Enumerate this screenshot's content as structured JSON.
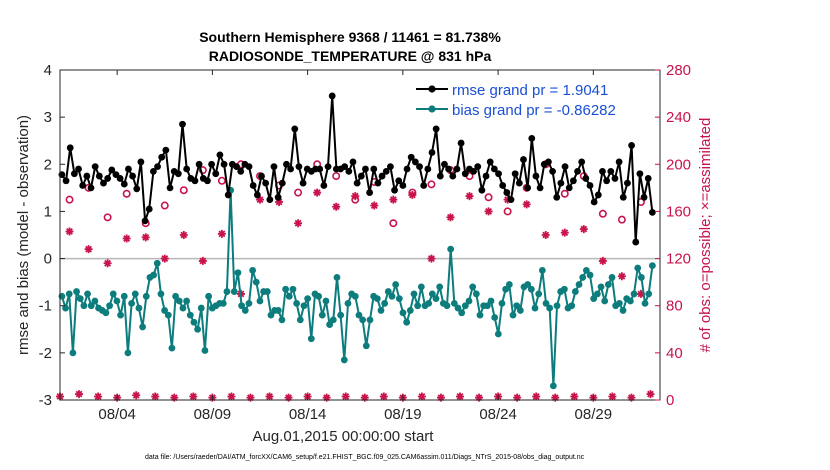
{
  "chart_data": {
    "type": "line",
    "title": "Southern Hemisphere 9368 / 11461 = 81.738%",
    "subtitle": "RADIOSONDE_TEMPERATURE @ 831 hPa",
    "xlabel": "Aug.01,2015 00:00:00 start",
    "ylabel": "rmse and bias (model - observation)",
    "y2label": "# of obs: o=possible; ×=assimilated",
    "footnote": "data file: /Users/raeder/DAI/ATM_forcXX/CAM6_setup/f.e21.FHIST_BGC.f09_025.CAM6assim.011/Diags_NTrS_2015-08/obs_diag_output.nc",
    "xlim": [
      0,
      31.5
    ],
    "ylim": [
      -3,
      4
    ],
    "y2lim": [
      0,
      280
    ],
    "x_tick_values": [
      3,
      8,
      13,
      18,
      23,
      28
    ],
    "x_tick_labels": [
      "08/04",
      "08/09",
      "08/14",
      "08/19",
      "08/24",
      "08/29"
    ],
    "y_tick_labels": [
      "-3",
      "-2",
      "-1",
      "0",
      "1",
      "2",
      "3",
      "4"
    ],
    "y2_tick_labels": [
      "0",
      "40",
      "80",
      "120",
      "160",
      "200",
      "240",
      "280"
    ],
    "legend": [
      {
        "name": "rmse grand pr = 1.9041",
        "color": "#000000"
      },
      {
        "name": "bias grand pr = -0.86282",
        "color": "#0c7c7c"
      }
    ],
    "series": [
      {
        "name": "rmse",
        "color": "#000000",
        "values": [
          1.78,
          1.65,
          2.35,
          1.8,
          1.9,
          1.55,
          1.75,
          1.5,
          1.95,
          1.75,
          1.6,
          1.7,
          1.88,
          1.78,
          1.7,
          1.58,
          1.9,
          1.75,
          1.48,
          2.05,
          0.8,
          1.05,
          1.85,
          1.95,
          2.15,
          2.3,
          1.5,
          1.85,
          1.8,
          2.85,
          1.9,
          1.7,
          1.65,
          2.0,
          1.7,
          1.65,
          2.0,
          1.8,
          2.2,
          2.0,
          1.35,
          2.0,
          1.95,
          1.85,
          2.0,
          1.95,
          1.55,
          1.35,
          1.75,
          1.6,
          1.25,
          1.95,
          1.3,
          1.6,
          2.0,
          1.9,
          2.75,
          1.95,
          1.6,
          1.9,
          1.85,
          1.9,
          1.9,
          1.55,
          1.95,
          3.45,
          1.9,
          1.9,
          1.95,
          1.85,
          2.05,
          1.6,
          1.75,
          1.9,
          1.4,
          1.9,
          1.6,
          1.75,
          1.85,
          1.95,
          1.45,
          1.65,
          1.55,
          1.9,
          2.15,
          2.05,
          1.95,
          1.55,
          1.9,
          2.25,
          2.75,
          1.75,
          2.0,
          1.9,
          1.75,
          1.9,
          2.45,
          1.8,
          1.9,
          1.85,
          1.95,
          1.45,
          1.75,
          2.05,
          1.9,
          1.8,
          1.55,
          1.4,
          1.25,
          1.8,
          1.6,
          2.1,
          1.5,
          2.55,
          1.75,
          1.5,
          2.0,
          2.05,
          1.85,
          1.3,
          1.6,
          1.95,
          1.5,
          1.65,
          1.85,
          2.05,
          1.7,
          1.55,
          1.2,
          1.35,
          1.85,
          1.65,
          1.85,
          1.7,
          2.05,
          1.3,
          1.6,
          2.4,
          0.35,
          1.8,
          1.3,
          1.7,
          0.98
        ]
      },
      {
        "name": "bias",
        "color": "#0c7c7c",
        "values": [
          -0.8,
          -1.05,
          -0.75,
          -2.0,
          -0.7,
          -0.85,
          -1.0,
          -0.75,
          -1.0,
          -0.9,
          -1.05,
          -1.1,
          -1.15,
          -1.0,
          -0.75,
          -0.9,
          -1.2,
          -0.8,
          -2.0,
          -0.95,
          -0.75,
          -1.05,
          -1.45,
          -0.8,
          -0.4,
          -0.35,
          -0.1,
          -0.75,
          -1.1,
          -1.2,
          -1.9,
          -0.8,
          -0.9,
          -1.05,
          -0.9,
          -1.2,
          -1.35,
          -1.5,
          -1.05,
          -1.95,
          -0.8,
          -1.05,
          -1.0,
          -0.95,
          -0.95,
          -0.7,
          1.45,
          -0.7,
          -0.3,
          -1.0,
          -1.1,
          -0.95,
          -0.25,
          -0.5,
          -0.9,
          -0.7,
          -0.7,
          -1.2,
          -1.1,
          -1.1,
          -1.3,
          -0.65,
          -0.8,
          -0.65,
          -0.95,
          -1.3,
          -1.0,
          -0.85,
          -1.7,
          -0.75,
          -0.8,
          -1.2,
          -0.9,
          -1.4,
          -1.3,
          -0.4,
          -1.2,
          -2.15,
          -0.95,
          -0.75,
          -0.8,
          -1.2,
          -1.3,
          -1.85,
          -1.3,
          -0.8,
          -0.85,
          -1.1,
          -0.95,
          -0.7,
          -0.8,
          -0.55,
          -0.85,
          -1.15,
          -1.35,
          -1.1,
          -0.75,
          -1.0,
          -0.6,
          -1.0,
          -0.95,
          -0.75,
          -0.85,
          -0.6,
          -0.95,
          -1.0,
          0.2,
          -0.95,
          -1.05,
          -1.15,
          -1.0,
          -0.9,
          -0.6,
          -0.75,
          -1.2,
          -1.0,
          -1.0,
          -0.9,
          -1.25,
          -1.6,
          -0.95,
          -0.65,
          -0.55,
          -1.2,
          -1.0,
          -1.1,
          -0.6,
          -0.55,
          -0.65,
          -1.05,
          -0.75,
          -0.25,
          -0.95,
          -1.05,
          -2.7,
          -1.0,
          -0.7,
          -0.65,
          -1.05,
          -1.0,
          -0.7,
          -0.55,
          -0.4,
          -0.25,
          -0.35,
          -0.85,
          -0.75,
          -0.6,
          -0.9,
          -0.55,
          -0.4,
          -1.0,
          -0.95,
          -1.1,
          -0.85,
          -0.9,
          -0.75,
          -0.2,
          -0.4,
          -0.95,
          -0.75,
          -0.15
        ]
      },
      {
        "name": "possible",
        "color": "#c8144b",
        "axis": "right",
        "marker": "o",
        "x": [
          0.5,
          1.5,
          2.5,
          3.5,
          4.5,
          5.5,
          6.5,
          7.5,
          8.5,
          9.5,
          10.5,
          11.5,
          12.5,
          13.5,
          14.5,
          15.5,
          16.5,
          17.5,
          18.5,
          19.5,
          20.5,
          21.5,
          22.5,
          23.5,
          24.5,
          25.5,
          26.5,
          27.5,
          28.5,
          29.5,
          30.5
        ],
        "values": [
          170,
          180,
          155,
          175,
          150,
          165,
          178,
          195,
          186,
          200,
          190,
          182,
          176,
          200,
          190,
          170,
          185,
          150,
          176,
          183,
          195,
          190,
          172,
          160,
          180,
          200,
          175,
          190,
          158,
          153,
          168
        ]
      },
      {
        "name": "assimilated",
        "color": "#c8144b",
        "axis": "right",
        "marker": "*",
        "x": [
          0,
          0.5,
          1,
          1.5,
          2,
          2.5,
          3,
          3.5,
          4,
          4.5,
          5,
          5.5,
          6,
          6.5,
          7,
          7.5,
          8,
          8.5,
          9,
          9.5,
          10,
          10.5,
          11,
          11.5,
          12,
          12.5,
          13,
          13.5,
          14,
          14.5,
          15,
          15.5,
          16,
          16.5,
          17,
          17.5,
          18,
          18.5,
          19,
          19.5,
          20,
          20.5,
          21,
          21.5,
          22,
          22.5,
          23,
          23.5,
          24,
          24.5,
          25,
          25.5,
          26,
          26.5,
          27,
          27.5,
          28,
          28.5,
          29,
          29.5,
          30,
          30.5,
          31
        ],
        "values": [
          3,
          143,
          5,
          128,
          3,
          116,
          2,
          137,
          4,
          138,
          3,
          120,
          2,
          140,
          3,
          118,
          2,
          141,
          3,
          90,
          2,
          170,
          3,
          168,
          2,
          150,
          3,
          176,
          2,
          164,
          3,
          173,
          2,
          165,
          3,
          170,
          2,
          174,
          3,
          120,
          2,
          155,
          3,
          173,
          2,
          160,
          3,
          170,
          2,
          166,
          3,
          140,
          2,
          142,
          3,
          145,
          2,
          118,
          3,
          105,
          2,
          90,
          5
        ]
      }
    ]
  }
}
